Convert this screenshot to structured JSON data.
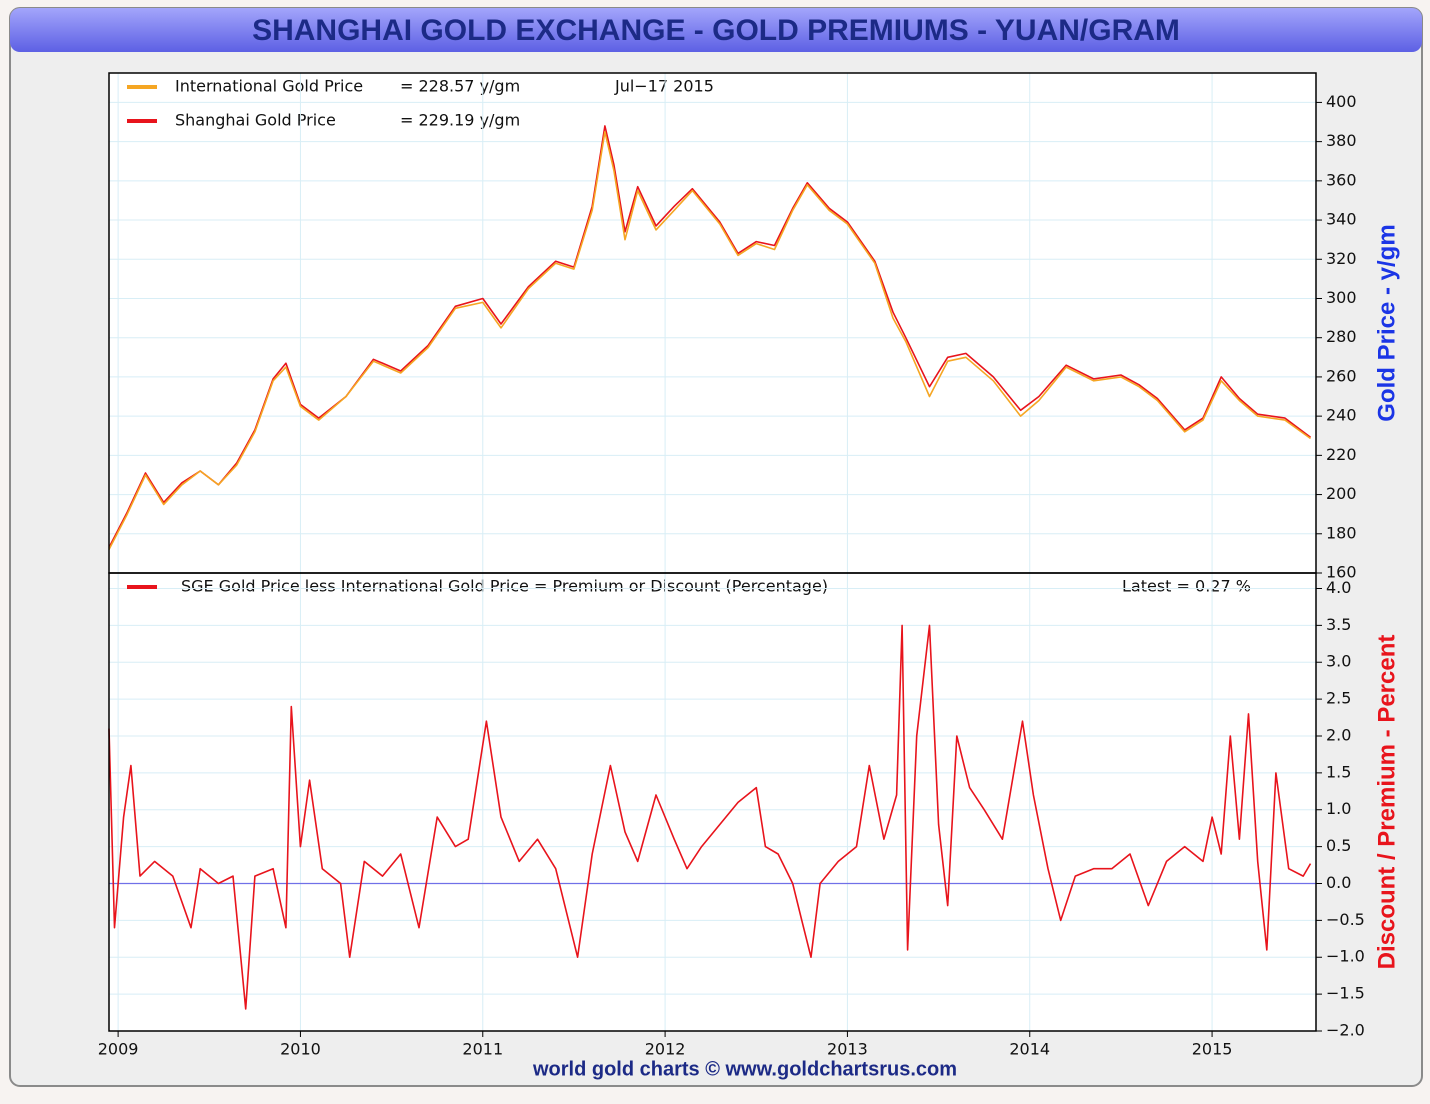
{
  "chart_data": [
    {
      "type": "line",
      "title": "SHANGHAI GOLD EXCHANGE - GOLD PREMIUMS - YUAN/GRAM",
      "ylabel": "Gold Price - y/gm",
      "ylabel_color": "#1b35e6",
      "date_label": "Jul−17  2015",
      "legend_values": [
        "= 228.57 y/gm",
        "= 229.19 y/gm"
      ],
      "xlim": [
        2008.95,
        2015.57
      ],
      "ylim": [
        160,
        415
      ],
      "yticks": [
        160,
        180,
        200,
        220,
        240,
        260,
        280,
        300,
        320,
        340,
        360,
        380,
        400
      ],
      "grid": true,
      "x": [
        2008.95,
        2009.05,
        2009.15,
        2009.25,
        2009.35,
        2009.45,
        2009.55,
        2009.65,
        2009.75,
        2009.85,
        2009.92,
        2010.0,
        2010.1,
        2010.25,
        2010.4,
        2010.55,
        2010.7,
        2010.85,
        2011.0,
        2011.1,
        2011.25,
        2011.4,
        2011.5,
        2011.6,
        2011.67,
        2011.72,
        2011.78,
        2011.85,
        2011.95,
        2012.05,
        2012.15,
        2012.3,
        2012.4,
        2012.5,
        2012.6,
        2012.7,
        2012.78,
        2012.9,
        2013.0,
        2013.15,
        2013.25,
        2013.32,
        2013.45,
        2013.55,
        2013.65,
        2013.8,
        2013.95,
        2014.05,
        2014.2,
        2014.35,
        2014.5,
        2014.6,
        2014.7,
        2014.85,
        2014.95,
        2015.05,
        2015.15,
        2015.25,
        2015.4,
        2015.54
      ],
      "series": [
        {
          "name": "Shanghai Gold Price",
          "color": "#e8141c",
          "values": [
            173,
            191,
            211,
            196,
            206,
            212,
            205,
            216,
            233,
            259,
            267,
            246,
            239,
            250,
            269,
            263,
            276,
            296,
            300,
            287,
            306,
            319,
            316,
            347,
            388,
            368,
            334,
            357,
            337,
            347,
            356,
            339,
            323,
            329,
            327,
            346,
            359,
            346,
            339,
            319,
            293,
            280,
            255,
            270,
            272,
            260,
            243,
            250,
            266,
            259,
            261,
            256,
            249,
            233,
            239,
            260,
            249,
            241,
            239,
            229.19
          ]
        },
        {
          "name": "International Gold Price",
          "color": "#f5a623",
          "values": [
            172,
            190,
            210,
            195,
            205,
            212,
            205,
            215,
            232,
            258,
            265,
            245,
            238,
            250,
            268,
            262,
            275,
            295,
            298,
            285,
            305,
            318,
            315,
            345,
            385,
            365,
            330,
            355,
            335,
            345,
            355,
            338,
            322,
            328,
            325,
            345,
            358,
            345,
            338,
            318,
            290,
            278,
            250,
            268,
            270,
            258,
            240,
            248,
            265,
            258,
            260,
            255,
            248,
            232,
            238,
            258,
            248,
            240,
            238,
            228.57
          ]
        }
      ]
    },
    {
      "type": "line",
      "ylabel": "Discount / Premium - Percent",
      "ylabel_color": "#e8141c",
      "latest_label": "Latest = 0.27 %",
      "source": "world gold charts © www.goldchartsrus.com",
      "xlim": [
        2008.95,
        2015.57
      ],
      "xticks": [
        2009,
        2010,
        2011,
        2012,
        2013,
        2014,
        2015
      ],
      "ylim": [
        -2,
        4.21
      ],
      "yticks": [
        {
          "value": -2,
          "label": "−2.0"
        },
        {
          "value": -1.5,
          "label": "−1.5"
        },
        {
          "value": -1,
          "label": "−1.0"
        },
        {
          "value": -0.5,
          "label": "−0.5"
        },
        {
          "value": 0,
          "label": "0.0"
        },
        0.5,
        {
          "value": 1,
          "label": "1.0"
        },
        1.5,
        {
          "value": 2,
          "label": "2.0"
        },
        2.5,
        {
          "value": 3,
          "label": "3.0"
        },
        3.5,
        {
          "value": 4,
          "label": "4.0"
        }
      ],
      "grid": true,
      "x": [
        2008.95,
        2008.98,
        2009.03,
        2009.07,
        2009.12,
        2009.2,
        2009.3,
        2009.4,
        2009.45,
        2009.55,
        2009.63,
        2009.7,
        2009.75,
        2009.85,
        2009.92,
        2009.95,
        2010.0,
        2010.05,
        2010.12,
        2010.22,
        2010.27,
        2010.35,
        2010.45,
        2010.55,
        2010.65,
        2010.75,
        2010.85,
        2010.92,
        2011.02,
        2011.1,
        2011.2,
        2011.3,
        2011.4,
        2011.52,
        2011.6,
        2011.7,
        2011.78,
        2011.85,
        2011.95,
        2012.05,
        2012.12,
        2012.2,
        2012.3,
        2012.4,
        2012.5,
        2012.55,
        2012.62,
        2012.7,
        2012.75,
        2012.8,
        2012.85,
        2012.95,
        2013.05,
        2013.12,
        2013.2,
        2013.27,
        2013.3,
        2013.33,
        2013.38,
        2013.45,
        2013.5,
        2013.55,
        2013.6,
        2013.67,
        2013.75,
        2013.85,
        2013.96,
        2014.02,
        2014.1,
        2014.17,
        2014.25,
        2014.35,
        2014.45,
        2014.55,
        2014.65,
        2014.75,
        2014.85,
        2014.95,
        2015.0,
        2015.05,
        2015.1,
        2015.15,
        2015.2,
        2015.25,
        2015.3,
        2015.35,
        2015.42,
        2015.5,
        2015.54
      ],
      "series": [
        {
          "name": "SGE Gold Price less International Gold Price = Premium or Discount (Percentage)",
          "color": "#e8141c",
          "values": [
            2.1,
            -0.6,
            0.9,
            1.6,
            0.1,
            0.3,
            0.1,
            -0.6,
            0.2,
            0.0,
            0.1,
            -1.7,
            0.1,
            0.2,
            -0.6,
            2.4,
            0.5,
            1.4,
            0.2,
            0.0,
            -1.0,
            0.3,
            0.1,
            0.4,
            -0.6,
            0.9,
            0.5,
            0.6,
            2.2,
            0.9,
            0.3,
            0.6,
            0.2,
            -1.0,
            0.4,
            1.6,
            0.7,
            0.3,
            1.2,
            0.6,
            0.2,
            0.5,
            0.8,
            1.1,
            1.3,
            0.5,
            0.4,
            0.0,
            -0.5,
            -1.0,
            0.0,
            0.3,
            0.5,
            1.6,
            0.6,
            1.2,
            3.5,
            -0.9,
            2.0,
            3.5,
            0.8,
            -0.3,
            2.0,
            1.3,
            1.0,
            0.6,
            2.2,
            1.2,
            0.2,
            -0.5,
            0.1,
            0.2,
            0.2,
            0.4,
            -0.3,
            0.3,
            0.5,
            0.3,
            0.9,
            0.4,
            2.0,
            0.6,
            2.3,
            0.3,
            -0.9,
            1.5,
            0.2,
            0.1,
            0.27
          ]
        }
      ]
    }
  ]
}
